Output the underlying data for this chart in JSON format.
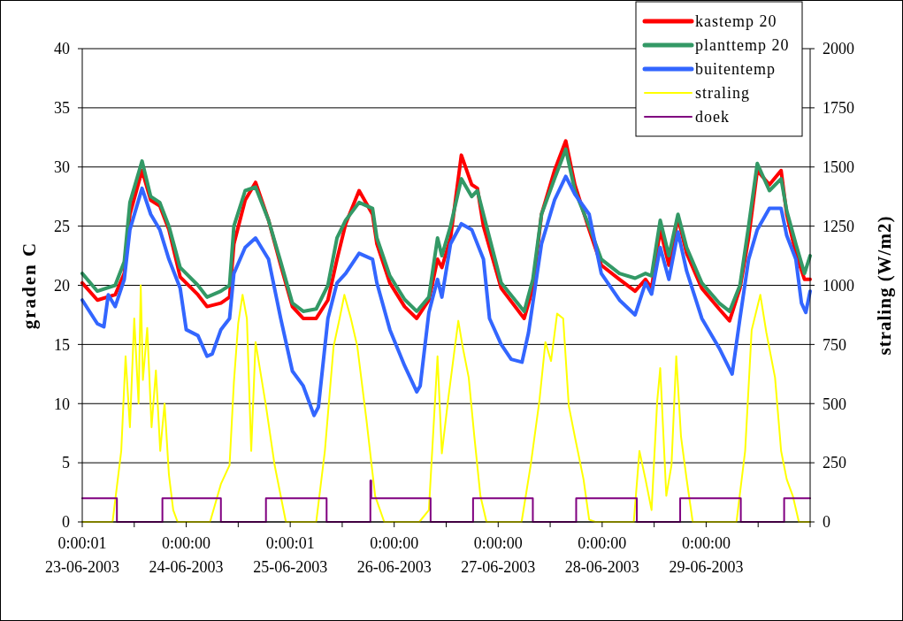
{
  "chart_data": {
    "type": "line",
    "xlim": [
      "2003-06-23T00:00",
      "2003-06-30T00:00"
    ],
    "ylim": [
      0,
      40
    ],
    "yticks": [
      0,
      5,
      10,
      15,
      20,
      25,
      30,
      35,
      40
    ],
    "y2lim": [
      0,
      2000
    ],
    "y2ticks": [
      0,
      250,
      500,
      750,
      1000,
      1250,
      1500,
      1750,
      2000
    ],
    "xticks": [
      {
        "value": "2003-06-23T00:00",
        "label": "0:00:01\n23-06-2003"
      },
      {
        "value": "2003-06-23T12:00",
        "label": null
      },
      {
        "value": "2003-06-24T00:00",
        "label": "0:00:00\n24-06-2003"
      },
      {
        "value": "2003-06-24T12:00",
        "label": null
      },
      {
        "value": "2003-06-25T00:00",
        "label": "0:00:01\n25-06-2003"
      },
      {
        "value": "2003-06-25T12:00",
        "label": null
      },
      {
        "value": "2003-06-26T00:00",
        "label": "0:00:00\n26-06-2003"
      },
      {
        "value": "2003-06-26T12:00",
        "label": null
      },
      {
        "value": "2003-06-27T00:00",
        "label": "0:00:00\n27-06-2003"
      },
      {
        "value": "2003-06-27T12:00",
        "label": null
      },
      {
        "value": "2003-06-28T00:00",
        "label": "0:00:00\n28-06-2003"
      },
      {
        "value": "2003-06-28T12:00",
        "label": null
      },
      {
        "value": "2003-06-29T00:00",
        "label": "0:00:00\n29-06-2003"
      },
      {
        "value": "2003-06-29T12:00",
        "label": null
      },
      {
        "value": "2003-06-30T00:00",
        "label": null
      }
    ],
    "ylabel": "graden C",
    "y2label": "straling (W/m2)",
    "grid": "y",
    "legend": "top right",
    "marker": "none",
    "x": [
      "2003-06-23T00:00",
      "2003-06-23T03:30",
      "2003-06-23T07:36",
      "2003-06-23T09:42",
      "2003-06-23T11:00",
      "2003-06-23T13:48",
      "2003-06-23T15:48",
      "2003-06-23T17:54",
      "2003-06-23T20:00",
      "2003-06-23T22:36",
      "2003-06-24T02:42",
      "2003-06-24T04:48",
      "2003-06-24T08:00",
      "2003-06-24T10:00",
      "2003-06-24T11:00",
      "2003-06-24T13:36",
      "2003-06-24T16:00",
      "2003-06-24T19:00",
      "2003-06-24T21:48",
      "2003-06-25T00:30",
      "2003-06-25T03:00",
      "2003-06-25T06:00",
      "2003-06-25T08:42",
      "2003-06-25T10:48",
      "2003-06-25T12:48",
      "2003-06-25T15:54",
      "2003-06-25T19:00",
      "2003-06-25T20:00",
      "2003-06-25T23:00",
      "2003-06-26T02:24",
      "2003-06-26T05:12",
      "2003-06-26T08:00",
      "2003-06-26T10:00",
      "2003-06-26T11:00",
      "2003-06-26T13:00",
      "2003-06-26T15:30",
      "2003-06-26T17:54",
      "2003-06-26T19:12",
      "2003-06-26T20:36",
      "2003-06-27T00:42",
      "2003-06-27T06:00",
      "2003-06-27T08:00",
      "2003-06-27T10:00",
      "2003-06-27T13:00",
      "2003-06-27T15:36",
      "2003-06-27T17:42",
      "2003-06-27T21:00",
      "2003-06-27T23:48",
      "2003-06-28T04:00",
      "2003-06-28T07:36",
      "2003-06-28T10:00",
      "2003-06-28T11:24",
      "2003-06-28T13:24",
      "2003-06-28T15:24",
      "2003-06-28T17:30",
      "2003-06-28T19:30",
      "2003-06-28T23:00",
      "2003-06-29T03:00",
      "2003-06-29T05:24",
      "2003-06-29T07:48",
      "2003-06-29T09:48",
      "2003-06-29T11:48",
      "2003-06-29T14:36",
      "2003-06-29T17:18",
      "2003-06-29T18:36",
      "2003-06-29T20:42",
      "2003-06-29T22:42",
      "2003-06-30T00:00"
    ],
    "series": [
      {
        "name": "kastemp 20",
        "color": "#ff0000",
        "values": [
          20.2,
          18.75,
          19.2,
          21,
          26,
          29.7,
          27.2,
          26.7,
          24.7,
          20.7,
          19.2,
          18.2,
          18.5,
          19,
          23.5,
          27.2,
          28.7,
          25.5,
          21.7,
          18.2,
          17.2,
          17.2,
          18.75,
          22.2,
          25.2,
          28,
          26,
          23.5,
          20.2,
          18.2,
          17.2,
          18.75,
          22.2,
          21.5,
          24,
          31,
          28.5,
          28.2,
          25,
          19.75,
          17.2,
          19.75,
          26,
          29.7,
          32.2,
          28.5,
          24.7,
          21.7,
          20.5,
          19.5,
          20.5,
          19.75,
          24.7,
          21.7,
          25.7,
          22.7,
          19.75,
          18,
          17,
          19.75,
          24,
          29.7,
          28.5,
          29.7,
          26,
          22.7,
          20.5,
          20.5
        ]
      },
      {
        "name": "planttemp 20",
        "color": "#339966",
        "values": [
          21,
          19.5,
          20,
          22,
          27,
          30.5,
          27.5,
          27,
          25,
          21.5,
          20,
          19,
          19.5,
          20,
          25,
          28,
          28.3,
          25.5,
          22,
          18.5,
          17.8,
          18,
          20,
          24,
          25.5,
          27,
          26.5,
          24,
          20.8,
          18.8,
          17.8,
          19,
          24,
          22.5,
          25,
          29,
          27.5,
          28,
          26,
          20.2,
          17.8,
          20.5,
          26,
          29,
          31.5,
          28,
          25,
          22.2,
          21,
          20.6,
          21,
          20.8,
          25.5,
          22.5,
          26,
          23.2,
          20.2,
          18.5,
          17.8,
          20,
          25,
          30.3,
          28,
          29,
          26.3,
          23.5,
          21,
          22.5
        ]
      },
      {
        "name": "buitentemp",
        "color": "#3366ff",
        "x": [
          "2003-06-23T00:00",
          "2003-06-23T03:30",
          "2003-06-23T05:00",
          "2003-06-23T06:00",
          "2003-06-23T07:36",
          "2003-06-23T09:42",
          "2003-06-23T11:00",
          "2003-06-23T13:48",
          "2003-06-23T15:48",
          "2003-06-23T17:54",
          "2003-06-23T20:00",
          "2003-06-23T22:36",
          "2003-06-24T00:00",
          "2003-06-24T02:42",
          "2003-06-24T04:48",
          "2003-06-24T06:00",
          "2003-06-24T08:00",
          "2003-06-24T10:00",
          "2003-06-24T11:00",
          "2003-06-24T13:36",
          "2003-06-24T16:00",
          "2003-06-24T19:00",
          "2003-06-24T21:48",
          "2003-06-25T00:30",
          "2003-06-25T03:00",
          "2003-06-25T05:30",
          "2003-06-25T06:30",
          "2003-06-25T08:42",
          "2003-06-25T10:48",
          "2003-06-25T12:48",
          "2003-06-25T15:54",
          "2003-06-25T19:00",
          "2003-06-25T20:00",
          "2003-06-25T23:00",
          "2003-06-26T02:24",
          "2003-06-26T05:12",
          "2003-06-26T06:00",
          "2003-06-26T08:00",
          "2003-06-26T10:00",
          "2003-06-26T11:00",
          "2003-06-26T13:00",
          "2003-06-26T15:30",
          "2003-06-26T17:54",
          "2003-06-26T20:36",
          "2003-06-26T22:00",
          "2003-06-27T00:42",
          "2003-06-27T03:00",
          "2003-06-27T05:30",
          "2003-06-27T07:00",
          "2003-06-27T10:00",
          "2003-06-27T13:00",
          "2003-06-27T15:36",
          "2003-06-27T17:42",
          "2003-06-27T21:00",
          "2003-06-27T23:48",
          "2003-06-28T04:00",
          "2003-06-28T07:36",
          "2003-06-28T10:00",
          "2003-06-28T11:24",
          "2003-06-28T13:24",
          "2003-06-28T15:24",
          "2003-06-28T17:30",
          "2003-06-28T19:30",
          "2003-06-28T23:00",
          "2003-06-29T03:00",
          "2003-06-29T06:00",
          "2003-06-29T07:48",
          "2003-06-29T09:48",
          "2003-06-29T11:48",
          "2003-06-29T14:36",
          "2003-06-29T17:18",
          "2003-06-29T18:36",
          "2003-06-29T20:42",
          "2003-06-29T22:00",
          "2003-06-29T23:00",
          "2003-06-30T00:00"
        ],
        "values": [
          18.75,
          16.75,
          16.5,
          19.2,
          18.2,
          20.5,
          24.7,
          28.2,
          26,
          24.7,
          22.2,
          19.75,
          16.25,
          15.75,
          14,
          14.2,
          16.25,
          17.2,
          21,
          23.2,
          24,
          22.2,
          17.2,
          12.75,
          11.5,
          9,
          9.7,
          17.2,
          20.2,
          21,
          22.7,
          22.2,
          20.2,
          16.25,
          13.2,
          11,
          11.5,
          17.7,
          20.5,
          19,
          23.5,
          25.2,
          24.7,
          22.2,
          17.2,
          15,
          13.75,
          13.5,
          16,
          23.5,
          27.2,
          29.2,
          27.7,
          26,
          21,
          18.75,
          17.5,
          20.2,
          19.25,
          23.2,
          20.5,
          24.5,
          21.2,
          17.2,
          14.7,
          12.5,
          17.2,
          22.2,
          24.7,
          26.5,
          26.5,
          24.2,
          22.2,
          18.5,
          17.7,
          19.5
        ]
      },
      {
        "name": "straling",
        "color": "#ffff00",
        "axis": "y2",
        "x": [
          "2003-06-23T00:00",
          "2003-06-23T07:00",
          "2003-06-23T08:00",
          "2003-06-23T09:00",
          "2003-06-23T10:00",
          "2003-06-23T11:00",
          "2003-06-23T12:00",
          "2003-06-23T13:00",
          "2003-06-23T13:30",
          "2003-06-23T14:00",
          "2003-06-23T15:00",
          "2003-06-23T16:00",
          "2003-06-23T17:00",
          "2003-06-23T18:00",
          "2003-06-23T19:00",
          "2003-06-23T20:00",
          "2003-06-23T21:00",
          "2003-06-23T22:00",
          "2003-06-24T05:30",
          "2003-06-24T08:00",
          "2003-06-24T10:00",
          "2003-06-24T11:00",
          "2003-06-24T12:00",
          "2003-06-24T13:00",
          "2003-06-24T14:00",
          "2003-06-24T15:00",
          "2003-06-24T16:00",
          "2003-06-24T18:24",
          "2003-06-24T20:24",
          "2003-06-24T23:00",
          "2003-06-25T06:00",
          "2003-06-25T08:00",
          "2003-06-25T10:00",
          "2003-06-25T11:24",
          "2003-06-25T12:30",
          "2003-06-25T14:00",
          "2003-06-25T15:30",
          "2003-06-25T17:36",
          "2003-06-25T19:36",
          "2003-06-25T21:42",
          "2003-06-26T05:48",
          "2003-06-26T08:00",
          "2003-06-26T10:00",
          "2003-06-26T11:00",
          "2003-06-26T12:24",
          "2003-06-26T13:48",
          "2003-06-26T14:48",
          "2003-06-26T15:48",
          "2003-06-26T17:12",
          "2003-06-26T18:30",
          "2003-06-26T19:54",
          "2003-06-26T21:18",
          "2003-06-27T05:24",
          "2003-06-27T07:30",
          "2003-06-27T09:30",
          "2003-06-27T10:54",
          "2003-06-27T12:12",
          "2003-06-27T13:36",
          "2003-06-27T15:00",
          "2003-06-27T16:18",
          "2003-06-27T17:42",
          "2003-06-27T19:42",
          "2003-06-27T21:00",
          "2003-06-27T22:24",
          "2003-06-28T07:18",
          "2003-06-28T08:36",
          "2003-06-28T10:00",
          "2003-06-28T11:24",
          "2003-06-28T12:42",
          "2003-06-28T13:24",
          "2003-06-28T14:48",
          "2003-06-28T16:00",
          "2003-06-28T17:06",
          "2003-06-28T18:12",
          "2003-06-28T19:30",
          "2003-06-28T20:54",
          "2003-06-29T07:00",
          "2003-06-29T09:00",
          "2003-06-29T10:30",
          "2003-06-29T12:30",
          "2003-06-29T13:54",
          "2003-06-29T15:54",
          "2003-06-29T17:18",
          "2003-06-29T18:36",
          "2003-06-29T20:00",
          "2003-06-29T21:24",
          "2003-06-30T00:00"
        ],
        "values": [
          0,
          0,
          150,
          300,
          700,
          400,
          860,
          500,
          1000,
          600,
          820,
          400,
          640,
          300,
          500,
          200,
          50,
          0,
          0,
          160,
          240,
          590,
          840,
          960,
          860,
          300,
          760,
          490,
          240,
          0,
          0,
          300,
          740,
          860,
          960,
          860,
          740,
          430,
          110,
          0,
          0,
          50,
          700,
          290,
          510,
          710,
          850,
          740,
          610,
          360,
          110,
          0,
          0,
          240,
          510,
          760,
          680,
          880,
          860,
          490,
          360,
          180,
          10,
          0,
          0,
          300,
          180,
          50,
          510,
          650,
          110,
          240,
          700,
          360,
          180,
          0,
          0,
          300,
          810,
          960,
          800,
          610,
          300,
          180,
          110,
          0,
          0
        ]
      },
      {
        "name": "doek",
        "color": "#800080",
        "type": "step",
        "x": [
          "2003-06-23T00:00",
          "2003-06-23T08:00",
          "2003-06-23T18:30",
          "2003-06-24T08:00",
          "2003-06-24T18:24",
          "2003-06-25T08:24",
          "2003-06-25T18:30",
          "2003-06-25T18:42",
          "2003-06-26T08:24",
          "2003-06-26T18:12",
          "2003-06-27T08:00",
          "2003-06-27T18:00",
          "2003-06-28T08:00",
          "2003-06-28T18:00",
          "2003-06-29T08:00",
          "2003-06-29T18:00",
          "2003-06-30T00:00"
        ],
        "values": [
          2,
          0,
          2,
          0,
          2,
          0,
          3.5,
          2,
          0,
          2,
          0,
          2,
          0,
          2,
          0,
          2,
          2
        ]
      }
    ]
  }
}
